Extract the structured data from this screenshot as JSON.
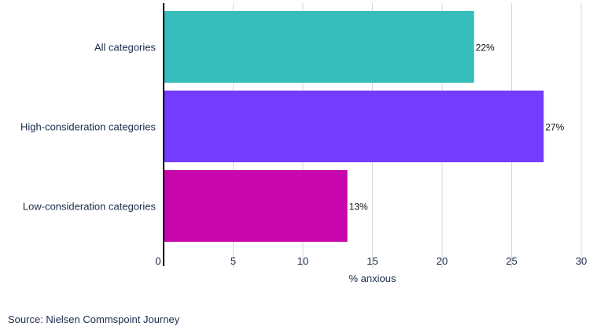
{
  "chart_data": {
    "type": "bar",
    "orientation": "horizontal",
    "categories": [
      "All categories",
      "High-consideration categories",
      "Low-consideration categories"
    ],
    "values": [
      22.3,
      27.3,
      13.2
    ],
    "value_labels": [
      "22%",
      "27%",
      "13%"
    ],
    "colors": [
      "#36BCBA",
      "#733CFF",
      "#C707AC"
    ],
    "xlabel": "% anxious",
    "xlim": [
      0,
      30
    ],
    "xticks": [
      0,
      5,
      10,
      15,
      20,
      25,
      30
    ],
    "grid": true,
    "legend": "none"
  },
  "footer": {
    "source": "Source: Nielsen Commspoint Journey"
  }
}
